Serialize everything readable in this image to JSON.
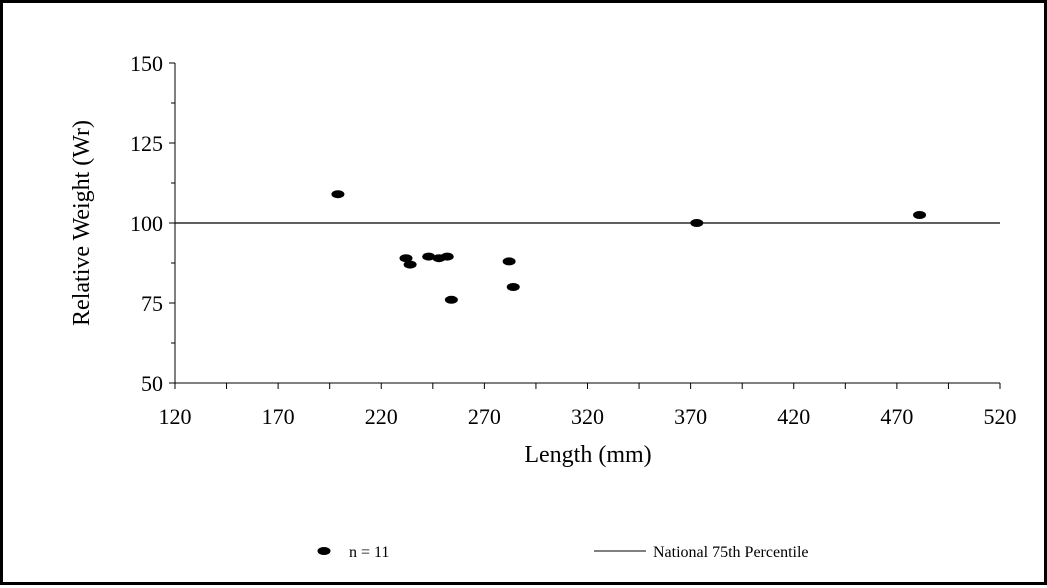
{
  "chart_data": {
    "type": "scatter",
    "xlabel": "Length (mm)",
    "ylabel": "Relative Weight (Wr)",
    "xlim": [
      120,
      520
    ],
    "ylim": [
      50,
      150
    ],
    "x_ticks": [
      120,
      170,
      220,
      270,
      320,
      370,
      420,
      470,
      520
    ],
    "y_ticks": [
      50,
      75,
      100,
      125,
      150
    ],
    "grid": false,
    "legend_position": "bottom",
    "series": [
      {
        "name": "n = 11",
        "kind": "points",
        "color": "#000000",
        "points": [
          {
            "x": 199,
            "y": 109
          },
          {
            "x": 232,
            "y": 89
          },
          {
            "x": 234,
            "y": 87
          },
          {
            "x": 243,
            "y": 89.5
          },
          {
            "x": 248,
            "y": 89
          },
          {
            "x": 252,
            "y": 89.5
          },
          {
            "x": 254,
            "y": 76
          },
          {
            "x": 282,
            "y": 88
          },
          {
            "x": 284,
            "y": 80
          },
          {
            "x": 373,
            "y": 100
          },
          {
            "x": 481,
            "y": 102.5
          }
        ]
      },
      {
        "name": "National 75th Percentile",
        "kind": "line",
        "color": "#000000",
        "points": [
          {
            "x": 120,
            "y": 100
          },
          {
            "x": 520,
            "y": 100
          }
        ]
      }
    ]
  }
}
